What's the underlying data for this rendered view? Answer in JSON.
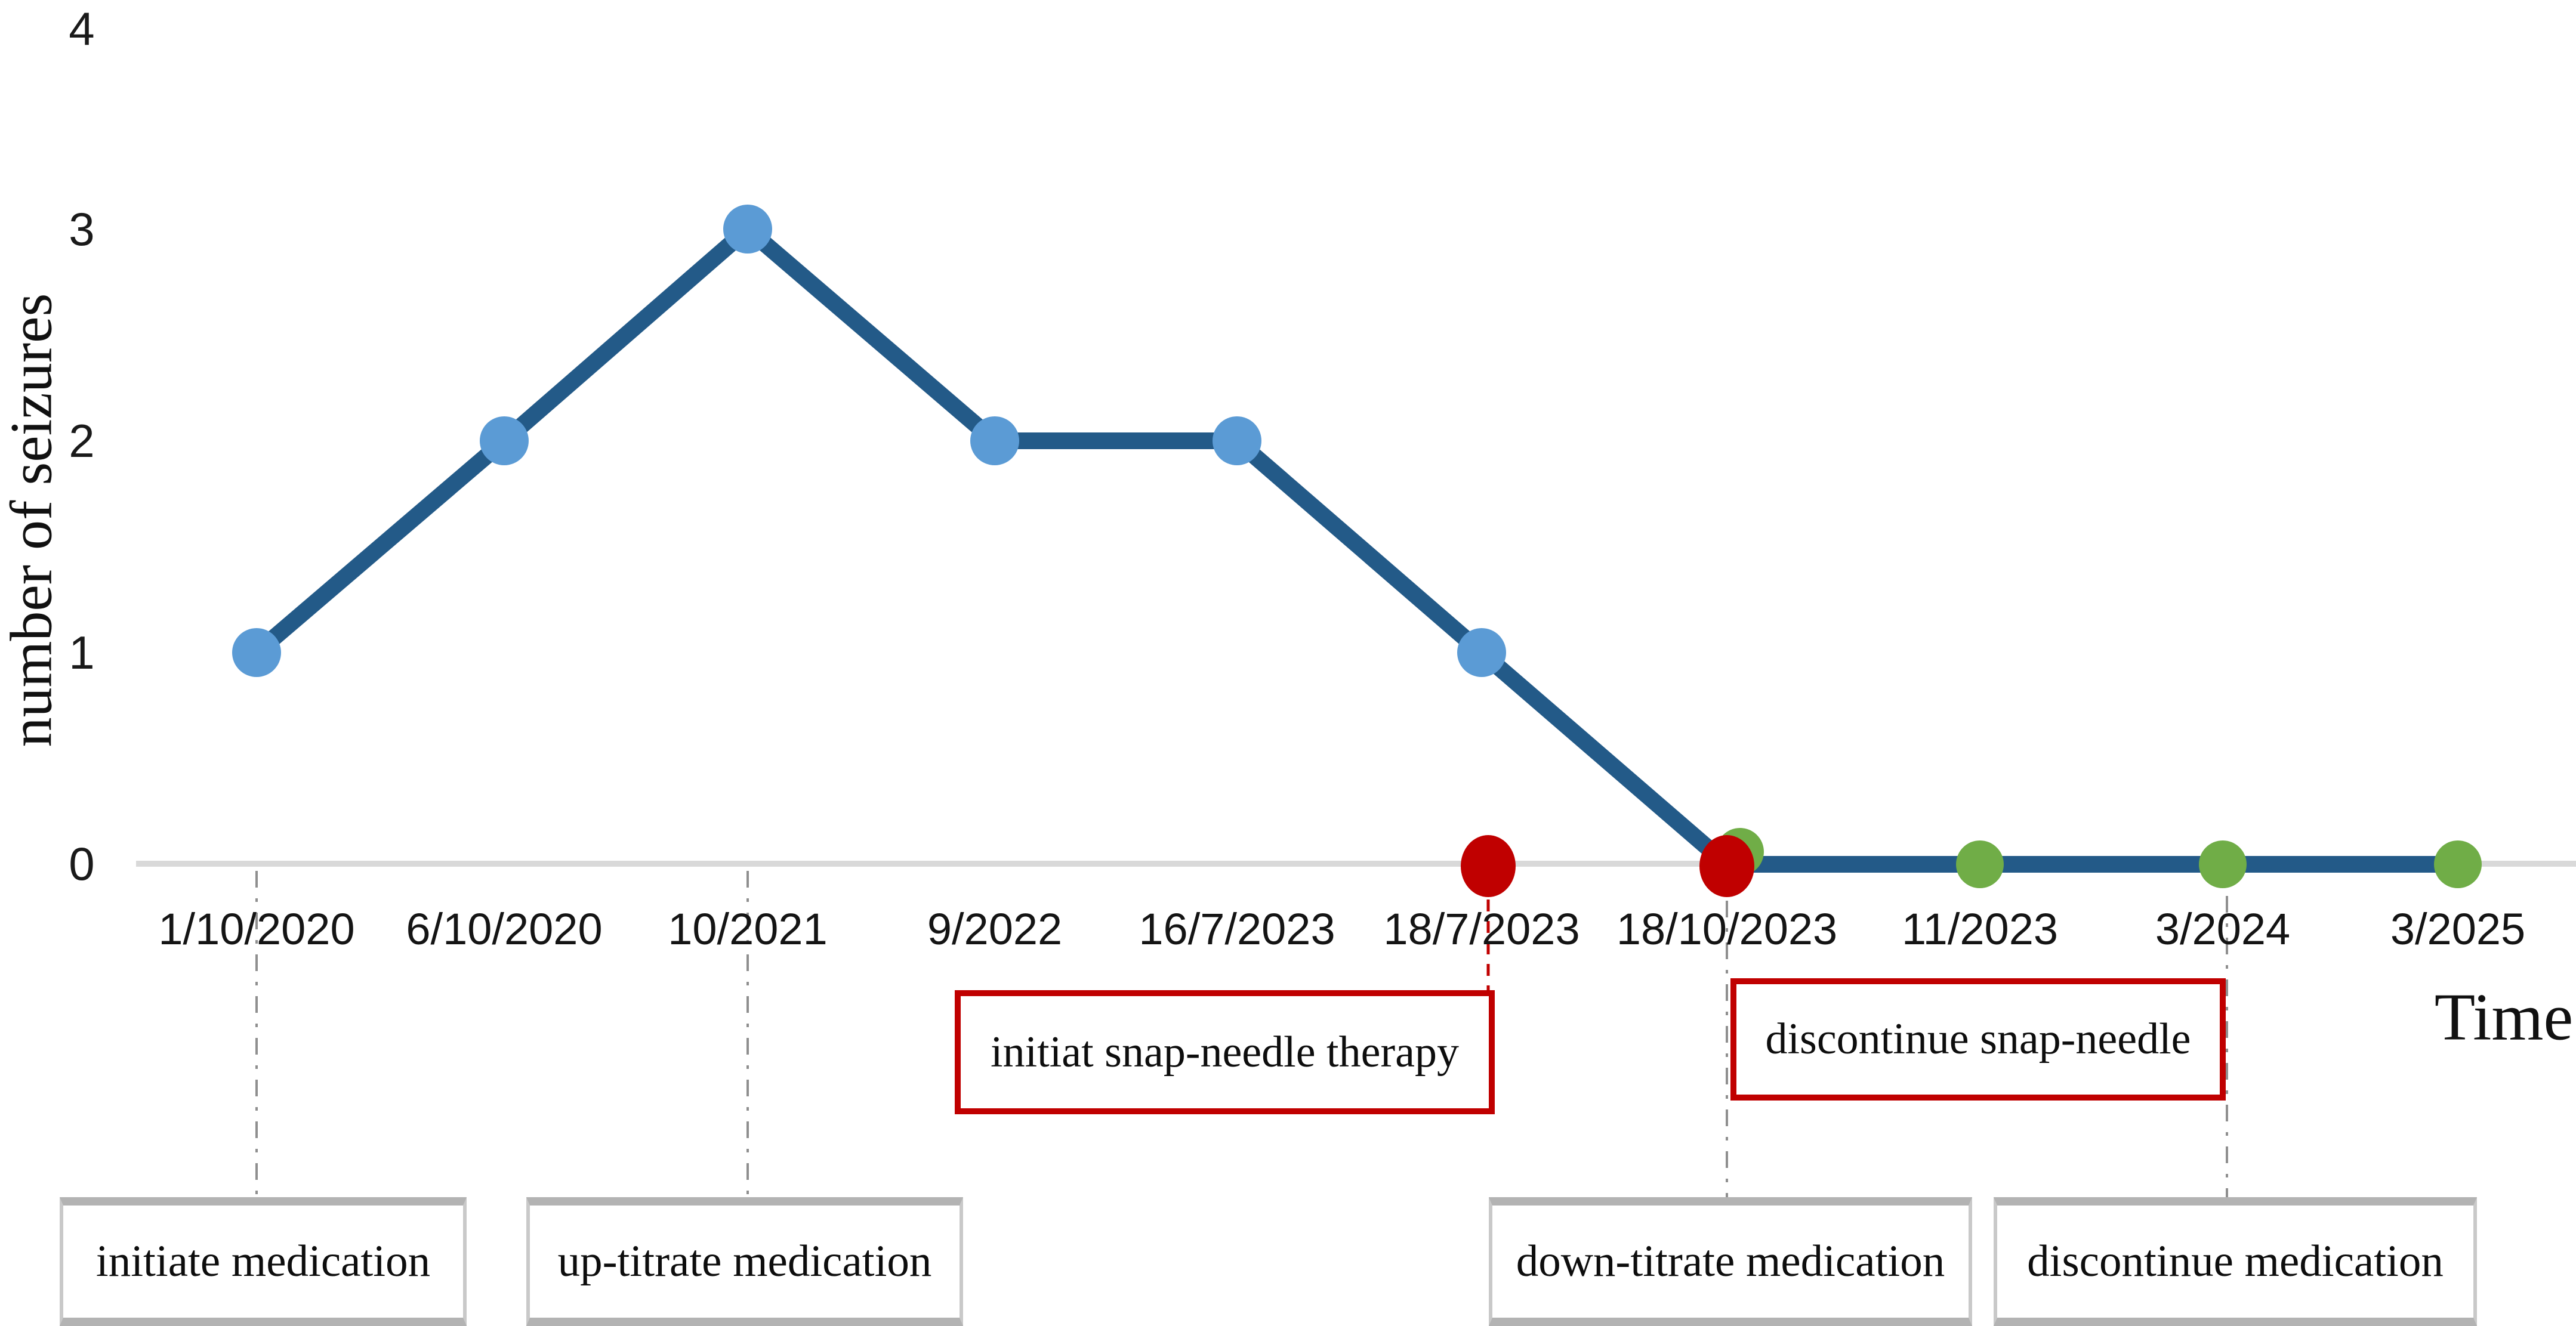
{
  "chart_data": {
    "type": "line",
    "title": "",
    "xlabel": "Time",
    "ylabel": "number of seizures",
    "ylim": [
      0,
      4
    ],
    "yticks": [
      0,
      1,
      2,
      3,
      4
    ],
    "grid": false,
    "legend": "none",
    "categories": [
      "1/10/2020",
      "6/10/2020",
      "10/2021",
      "9/2022",
      "16/7/2023",
      "18/7/2023",
      "18/10/2023",
      "11/2023",
      "3/2024",
      "3/2025"
    ],
    "series": [
      {
        "name": "number of seizures",
        "values": [
          1,
          2,
          3,
          2,
          2,
          1,
          0,
          0,
          0,
          0
        ]
      }
    ],
    "point_colors": [
      "blue",
      "blue",
      "blue",
      "blue",
      "blue",
      "blue",
      "red",
      "green",
      "green",
      "green"
    ],
    "event_markers": [
      {
        "label": "initiat snap-needle therapy",
        "date": "18/7/2023",
        "value": 0,
        "color": "red"
      },
      {
        "label": "discontinue snap-needle",
        "date": "18/10/2023",
        "value": 0,
        "color": "red"
      }
    ],
    "annotations": {
      "snap_initiate": "initiat snap-needle therapy",
      "snap_discontinue": "discontinue snap-needle",
      "med_initiate": "initiate medication",
      "med_uptitrate": "up-titrate medication",
      "med_downtitrate": "down-titrate medication",
      "med_discontinue": "discontinue medication"
    },
    "colors": {
      "line": "#235a88",
      "point_blue": "#5b9bd5",
      "point_red": "#c00000",
      "point_green": "#70ad47",
      "axis": "#d9d9d9",
      "guide_gray": "#8f8f8f",
      "guide_red": "#c00000",
      "red_box_border": "#c00000",
      "gray_box_border": "#bfbfbf"
    }
  }
}
